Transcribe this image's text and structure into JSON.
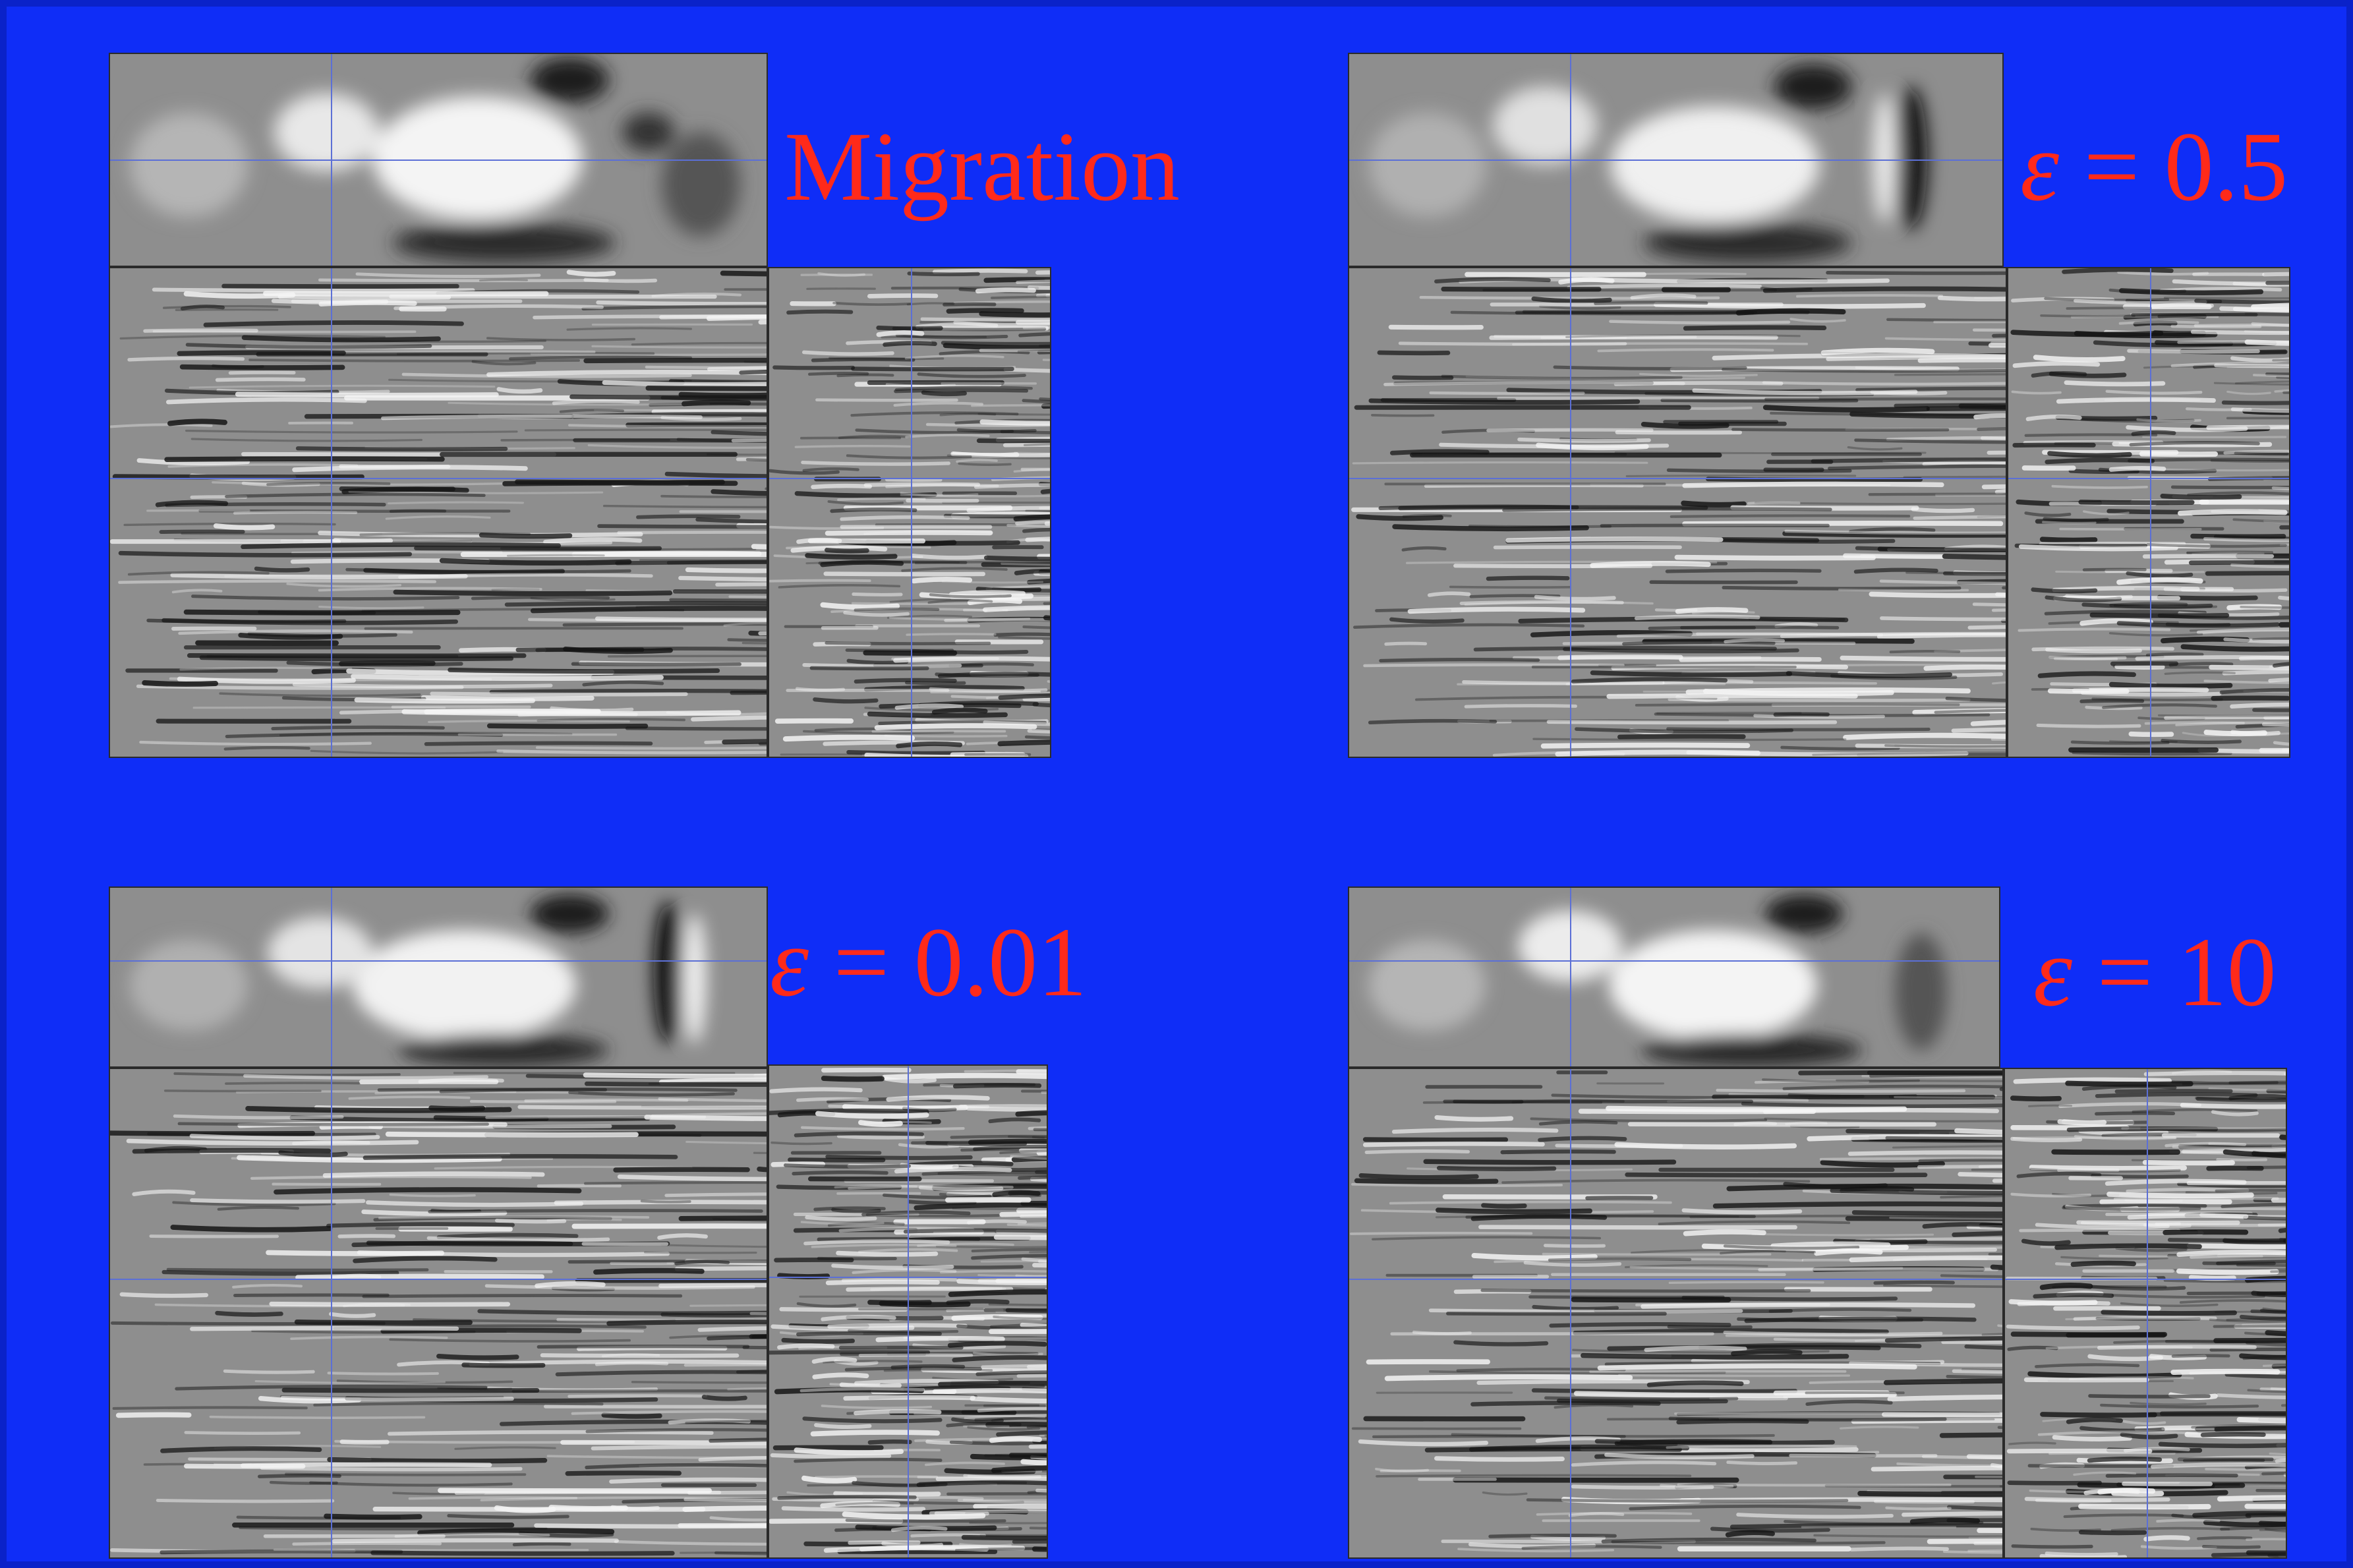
{
  "panels": [
    {
      "label_plain": "Migration",
      "label_eps": "",
      "label_value": ""
    },
    {
      "label_plain": "",
      "label_eps": "ε",
      "label_value": " = 0.5"
    },
    {
      "label_plain": "",
      "label_eps": "ε",
      "label_value": " = 0.01"
    },
    {
      "label_plain": "",
      "label_eps": "ε",
      "label_value": " = 10"
    }
  ],
  "colors": {
    "background": "#0f2df7",
    "label": "#ff2a1a",
    "crosshair": "#5b6fd6",
    "seismic_gray": "#8e8e8e"
  }
}
